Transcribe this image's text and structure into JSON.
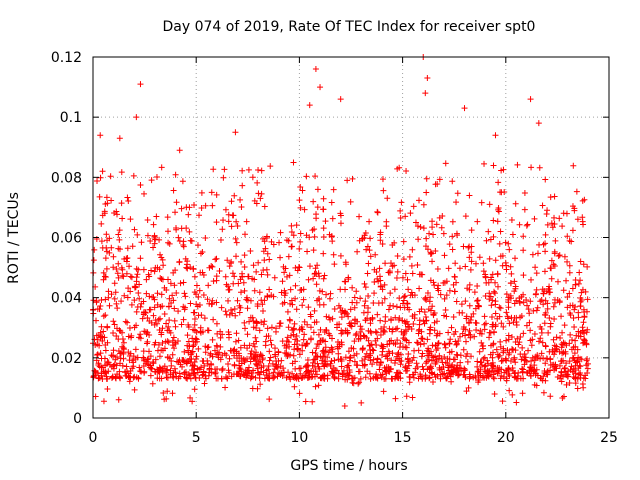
{
  "chart_data": {
    "type": "scatter",
    "title": "Day 074 of 2019, Rate Of TEC Index for receiver spt0",
    "xlabel": "GPS time / hours",
    "ylabel": "ROTI / TECUs",
    "xlim": [
      0,
      25
    ],
    "ylim": [
      0,
      0.12
    ],
    "xticks": [
      0,
      5,
      10,
      15,
      20,
      25
    ],
    "xtick_labels": [
      "0",
      "5",
      "10",
      "15",
      "20",
      "25"
    ],
    "yticks": [
      0,
      0.02,
      0.04,
      0.06,
      0.08,
      0.1,
      0.12
    ],
    "ytick_labels": [
      "0",
      "0.02",
      "0.04",
      "0.06",
      "0.08",
      "0.1",
      "0.12"
    ],
    "grid": true,
    "marker": "+",
    "marker_color": "#ff0000",
    "series": [
      {
        "name": "ROTI",
        "x_range": [
          0,
          24
        ],
        "bulk_range": [
          0.01,
          0.065
        ],
        "notable_points": [
          {
            "x": 0.35,
            "y": 0.094
          },
          {
            "x": 1.3,
            "y": 0.093
          },
          {
            "x": 2.1,
            "y": 0.1
          },
          {
            "x": 2.3,
            "y": 0.111
          },
          {
            "x": 4.2,
            "y": 0.089
          },
          {
            "x": 6.9,
            "y": 0.095
          },
          {
            "x": 10.5,
            "y": 0.104
          },
          {
            "x": 10.8,
            "y": 0.116
          },
          {
            "x": 11.0,
            "y": 0.11
          },
          {
            "x": 12.0,
            "y": 0.106
          },
          {
            "x": 12.2,
            "y": 0.004
          },
          {
            "x": 16.0,
            "y": 0.12
          },
          {
            "x": 16.2,
            "y": 0.113
          },
          {
            "x": 16.1,
            "y": 0.108
          },
          {
            "x": 18.0,
            "y": 0.103
          },
          {
            "x": 19.5,
            "y": 0.094
          },
          {
            "x": 21.2,
            "y": 0.106
          },
          {
            "x": 21.6,
            "y": 0.098
          }
        ]
      }
    ]
  }
}
